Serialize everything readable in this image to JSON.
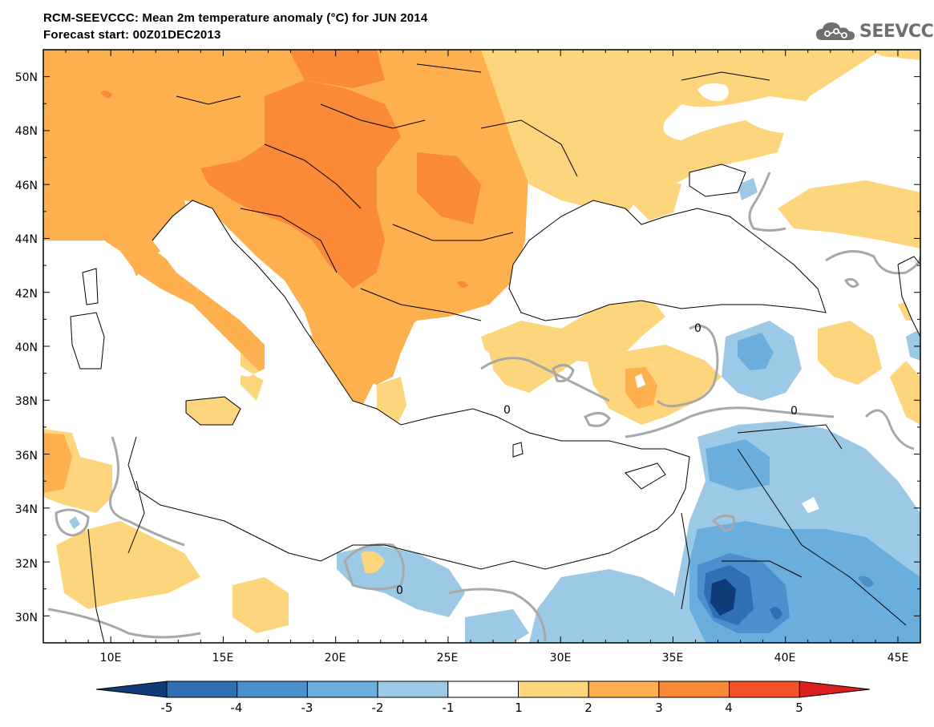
{
  "header": {
    "title_line1": "RCM-SEEVCCC: Mean 2m temperature anomaly (°C) for JUN 2014",
    "title_line2": "Forecast start: 00Z01DEC2013",
    "logo_text": "SEEVCCC",
    "logo_icon": "cloud-icon"
  },
  "map": {
    "lon_range": [
      7,
      46
    ],
    "lat_range": [
      29,
      51
    ],
    "lon_labels": [
      "10E",
      "15E",
      "20E",
      "25E",
      "30E",
      "35E",
      "40E",
      "45E"
    ],
    "lat_labels": [
      "30N",
      "32N",
      "34N",
      "36N",
      "38N",
      "40N",
      "42N",
      "44N",
      "46N",
      "48N",
      "50N"
    ],
    "contour_labels": [
      "0",
      "0",
      "0",
      "0"
    ]
  },
  "colorbar": {
    "ticks": [
      "-5",
      "-4",
      "-3",
      "-2",
      "-1",
      "1",
      "2",
      "3",
      "4",
      "5"
    ],
    "colors": [
      "#0f3c78",
      "#2f6fb3",
      "#4a90cd",
      "#6aaede",
      "#9ccae6",
      "#ffffff",
      "#fdd57c",
      "#fdb04d",
      "#fa8a38",
      "#f4502a",
      "#d8201e"
    ],
    "levels": [
      -5,
      -4,
      -3,
      -2,
      -1,
      1,
      2,
      3,
      4,
      5
    ]
  }
}
